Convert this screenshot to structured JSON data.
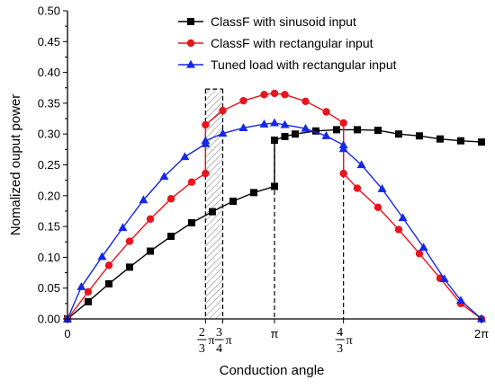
{
  "chart_data": {
    "type": "line",
    "xlabel": "Conduction angle",
    "ylabel": "Nomalized ouput power",
    "xlim_pi": [
      0,
      2
    ],
    "ylim": [
      0,
      0.5
    ],
    "y_ticks": [
      "0.00",
      "0.05",
      "0.10",
      "0.15",
      "0.20",
      "0.25",
      "0.30",
      "0.35",
      "0.40",
      "0.45",
      "0.50"
    ],
    "x_ticks": [
      {
        "label": "0",
        "value_pi": 0
      },
      {
        "num": "2",
        "den": "3",
        "sym": "π",
        "value_pi": 0.6667
      },
      {
        "num": "3",
        "den": "4",
        "sym": "π",
        "value_pi": 0.75
      },
      {
        "label": "π",
        "value_pi": 1
      },
      {
        "num": "4",
        "den": "3",
        "sym": "π",
        "value_pi": 1.3333
      },
      {
        "label": "2π",
        "value_pi": 2
      }
    ],
    "legend_position": "top-center",
    "series": [
      {
        "name": "ClassF with sinusoid input",
        "color": "#000000",
        "marker": "square",
        "x_pi": [
          0,
          0.1,
          0.2,
          0.3,
          0.4,
          0.5,
          0.6,
          0.7,
          0.8,
          0.9,
          1.0,
          1.0,
          1.05,
          1.1,
          1.2,
          1.3,
          1.4,
          1.5,
          1.6,
          1.7,
          1.8,
          1.9,
          2.0
        ],
        "y": [
          0,
          0.028,
          0.057,
          0.084,
          0.11,
          0.134,
          0.156,
          0.174,
          0.191,
          0.205,
          0.215,
          0.29,
          0.296,
          0.3,
          0.305,
          0.307,
          0.307,
          0.306,
          0.3,
          0.297,
          0.292,
          0.289,
          0.287
        ]
      },
      {
        "name": "ClassF with rectangular input",
        "color": "#e8141e",
        "marker": "circle",
        "x_pi": [
          0,
          0.1,
          0.2,
          0.3,
          0.4,
          0.5,
          0.6,
          0.6667,
          0.6667,
          0.75,
          0.85,
          0.95,
          1.0,
          1.05,
          1.15,
          1.25,
          1.3333,
          1.3333,
          1.4,
          1.5,
          1.6,
          1.7,
          1.8,
          1.9,
          2.0
        ],
        "y": [
          0,
          0.044,
          0.087,
          0.126,
          0.162,
          0.195,
          0.222,
          0.236,
          0.315,
          0.338,
          0.354,
          0.364,
          0.366,
          0.364,
          0.353,
          0.336,
          0.318,
          0.236,
          0.212,
          0.181,
          0.145,
          0.106,
          0.066,
          0.025,
          0
        ]
      },
      {
        "name": "Tuned load with rectangular input",
        "color": "#1428e6",
        "marker": "triangle",
        "x_pi": [
          0,
          0.067,
          0.167,
          0.267,
          0.367,
          0.467,
          0.567,
          0.6667,
          0.6667,
          0.75,
          0.85,
          0.95,
          1.0,
          1.05,
          1.15,
          1.25,
          1.3333,
          1.3333,
          1.42,
          1.52,
          1.62,
          1.72,
          1.82,
          1.9,
          2.0
        ],
        "y": [
          0,
          0.052,
          0.101,
          0.148,
          0.193,
          0.231,
          0.263,
          0.284,
          0.289,
          0.301,
          0.31,
          0.316,
          0.318,
          0.315,
          0.309,
          0.297,
          0.282,
          0.276,
          0.25,
          0.211,
          0.164,
          0.116,
          0.065,
          0.03,
          0
        ]
      }
    ],
    "annotations": {
      "dashed_verticals_pi": [
        {
          "x_pi": 0.6667,
          "y_top": 0.373
        },
        {
          "x_pi": 0.75,
          "y_top": 0.373
        },
        {
          "x_pi": 1.3333,
          "y_top": 0.318
        },
        {
          "x_pi": 1.0,
          "y_top": 0.29
        }
      ],
      "hatched_region_pi": [
        0.6667,
        0.75
      ]
    }
  }
}
